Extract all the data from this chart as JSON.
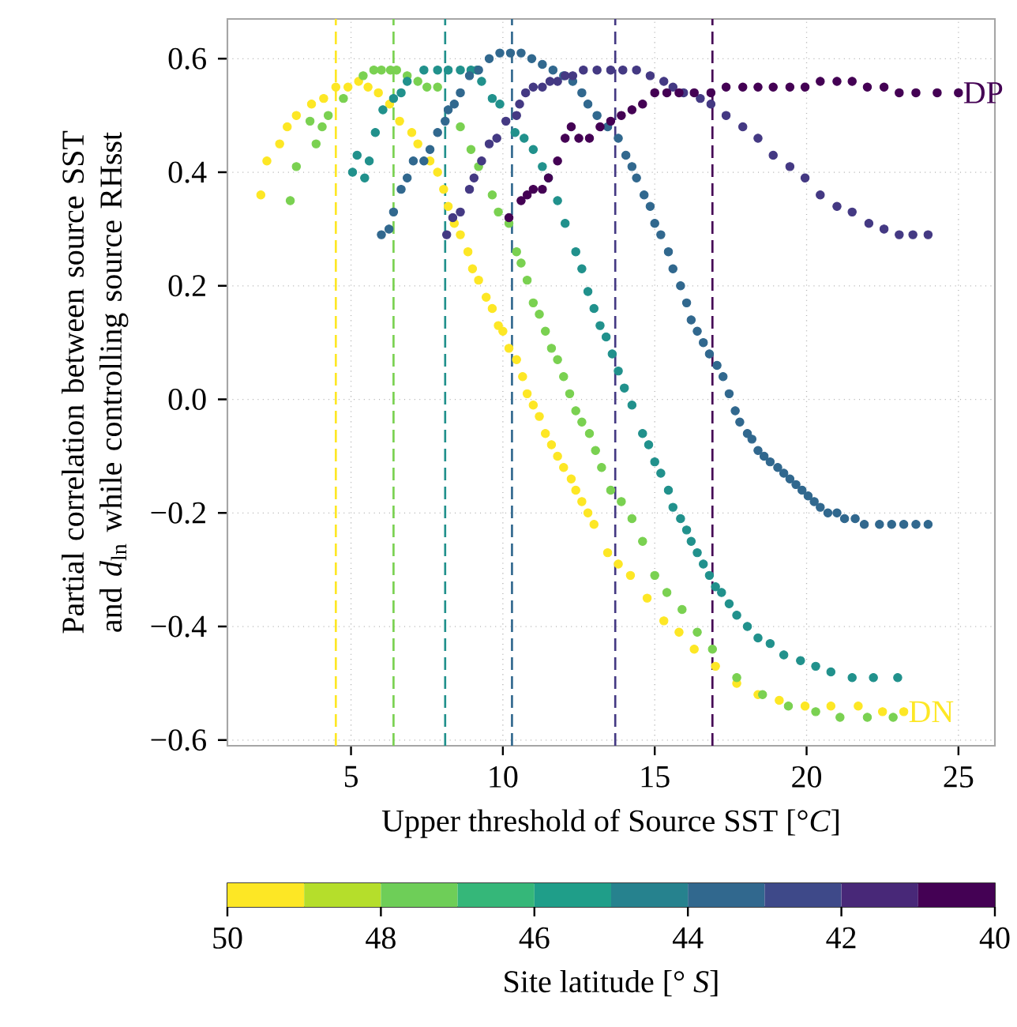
{
  "chart_data": {
    "type": "scatter",
    "xlabel": "Upper threshold of Source SST [°*C*]",
    "ylabel": "Partial correlation between source SST and *d*$_{ln}$ while controlling source RHsst",
    "clabel": "Site latitude [° *S*]",
    "clim": [
      50,
      40
    ],
    "cticks": [
      50,
      48,
      46,
      44,
      42,
      40
    ],
    "xlim": [
      0.93,
      26.2
    ],
    "ylim": [
      -0.61,
      0.67
    ],
    "xticks": [
      5,
      10,
      15,
      20,
      25
    ],
    "yticks": [
      {
        "value": -0.6,
        "label": "−0.6"
      },
      {
        "value": -0.4,
        "label": "−0.4"
      },
      {
        "value": -0.2,
        "label": "−0.2"
      },
      {
        "value": 0,
        "label": "0.0"
      },
      {
        "value": 0.2,
        "label": "0.2"
      },
      {
        "value": 0.4,
        "label": "0.4"
      },
      {
        "value": 0.6,
        "label": "0.6"
      }
    ],
    "grid": true,
    "marker": "circle",
    "series": [
      {
        "name": "DN",
        "color": "#fde725",
        "x": [
          2.03,
          2.23,
          2.65,
          2.9,
          3.2,
          3.7,
          4.1,
          4.5,
          4.9,
          5.25,
          5.56,
          5.9,
          6.27,
          6.6,
          7.0,
          7.2,
          7.6,
          7.85,
          8.05,
          8.2,
          8.4,
          8.6,
          8.85,
          9.0,
          9.2,
          9.45,
          9.65,
          9.85,
          10.0,
          10.2,
          10.45,
          10.65,
          10.8,
          11.0,
          11.2,
          11.4,
          11.6,
          11.8,
          12.0,
          12.25,
          12.4,
          12.6,
          12.8,
          13.0,
          13.45,
          13.8,
          14.2,
          14.75,
          15.3,
          15.8,
          16.3,
          17.0,
          17.7,
          18.4,
          19.1,
          19.95,
          20.8,
          21.7,
          22.5,
          23.2
        ],
        "values": [
          0.36,
          0.42,
          0.45,
          0.48,
          0.5,
          0.52,
          0.53,
          0.55,
          0.55,
          0.56,
          0.55,
          0.54,
          0.52,
          0.49,
          0.47,
          0.45,
          0.42,
          0.4,
          0.37,
          0.34,
          0.31,
          0.29,
          0.26,
          0.23,
          0.21,
          0.18,
          0.16,
          0.13,
          0.12,
          0.09,
          0.07,
          0.04,
          0.01,
          -0.01,
          -0.03,
          -0.06,
          -0.08,
          -0.1,
          -0.12,
          -0.14,
          -0.16,
          -0.18,
          -0.2,
          -0.22,
          -0.27,
          -0.29,
          -0.31,
          -0.35,
          -0.39,
          -0.41,
          -0.44,
          -0.47,
          -0.5,
          -0.52,
          -0.53,
          -0.54,
          -0.54,
          -0.54,
          -0.55,
          -0.55
        ]
      },
      {
        "color": "#7ad151",
        "x": [
          3.0,
          3.2,
          3.65,
          3.85,
          4.05,
          4.25,
          4.75,
          5.4,
          5.75,
          6.0,
          6.3,
          6.5,
          6.85,
          7.2,
          7.5,
          7.85,
          8.2,
          8.6,
          8.95,
          9.2,
          9.65,
          9.85,
          10.2,
          10.45,
          10.6,
          10.8,
          11.0,
          11.2,
          11.4,
          11.6,
          11.8,
          12.0,
          12.2,
          12.4,
          12.6,
          12.85,
          13.05,
          13.25,
          13.55,
          13.9,
          14.25,
          14.6,
          15.0,
          15.4,
          15.9,
          16.4,
          16.9,
          17.7,
          18.55,
          19.4,
          20.3,
          21.1,
          22.0,
          22.85
        ],
        "values": [
          0.35,
          0.41,
          0.49,
          0.45,
          0.48,
          0.5,
          0.53,
          0.57,
          0.58,
          0.58,
          0.58,
          0.58,
          0.57,
          0.56,
          0.55,
          0.55,
          null,
          0.48,
          0.44,
          0.41,
          0.36,
          0.33,
          0.31,
          0.26,
          0.24,
          0.21,
          0.17,
          0.15,
          0.12,
          0.09,
          0.07,
          0.04,
          0.01,
          -0.02,
          -0.04,
          -0.06,
          -0.09,
          -0.12,
          -0.16,
          -0.18,
          -0.21,
          -0.25,
          -0.31,
          -0.34,
          -0.37,
          -0.41,
          -0.44,
          -0.49,
          -0.52,
          -0.54,
          -0.55,
          -0.56,
          -0.56,
          -0.56
        ]
      },
      {
        "color": "#21918c",
        "x": [
          5.05,
          5.2,
          5.45,
          5.6,
          5.8,
          6.05,
          6.4,
          6.65,
          6.85,
          7.4,
          7.85,
          8.2,
          8.6,
          8.95,
          9.15,
          9.3,
          9.65,
          9.9,
          10.4,
          10.7,
          11.0,
          11.3,
          11.5,
          11.8,
          12.05,
          12.4,
          12.6,
          12.8,
          13.0,
          13.2,
          13.4,
          13.6,
          13.8,
          14.0,
          14.25,
          14.6,
          14.8,
          15.0,
          15.2,
          15.45,
          15.6,
          15.85,
          16.05,
          16.2,
          16.4,
          16.6,
          16.8,
          17.0,
          17.2,
          17.45,
          17.7,
          18.05,
          18.4,
          18.8,
          19.25,
          19.8,
          20.3,
          20.8,
          21.5,
          22.2,
          23.0
        ],
        "values": [
          0.4,
          0.43,
          0.39,
          0.42,
          0.47,
          0.51,
          0.53,
          0.54,
          0.56,
          0.58,
          0.58,
          0.58,
          0.58,
          0.58,
          0.58,
          0.56,
          0.53,
          0.52,
          0.47,
          0.46,
          0.44,
          0.41,
          0.39,
          0.35,
          0.31,
          0.26,
          0.23,
          0.19,
          0.16,
          0.13,
          0.11,
          0.08,
          0.05,
          0.02,
          -0.01,
          -0.06,
          -0.08,
          -0.11,
          -0.13,
          -0.16,
          -0.19,
          -0.21,
          -0.23,
          -0.25,
          -0.27,
          -0.29,
          -0.31,
          -0.33,
          -0.34,
          -0.36,
          -0.38,
          -0.4,
          -0.42,
          -0.43,
          -0.45,
          -0.46,
          -0.47,
          -0.48,
          -0.49,
          -0.49,
          -0.49
        ]
      },
      {
        "color": "#31688e",
        "x": [
          6.0,
          6.25,
          6.4,
          6.65,
          6.85,
          7.05,
          7.4,
          7.6,
          7.85,
          8.1,
          8.2,
          8.4,
          8.6,
          8.9,
          9.2,
          9.55,
          9.9,
          10.25,
          10.6,
          10.95,
          11.3,
          11.65,
          12.0,
          12.3,
          12.6,
          12.8,
          13.1,
          13.45,
          13.8,
          14.05,
          14.25,
          14.4,
          14.65,
          14.85,
          15.0,
          15.2,
          15.45,
          15.6,
          15.85,
          16.05,
          16.2,
          16.4,
          16.6,
          16.8,
          17.05,
          17.25,
          17.45,
          17.65,
          17.8,
          18.05,
          18.2,
          18.4,
          18.6,
          18.8,
          19.05,
          19.25,
          19.45,
          19.65,
          19.85,
          20.05,
          20.25,
          20.45,
          20.7,
          21.0,
          21.25,
          21.6,
          21.9,
          22.4,
          22.8,
          23.2,
          23.6,
          24.0
        ],
        "values": [
          0.29,
          0.3,
          0.33,
          0.37,
          0.39,
          0.42,
          0.42,
          0.44,
          0.47,
          0.49,
          0.51,
          0.52,
          0.54,
          0.57,
          0.58,
          0.6,
          0.61,
          0.61,
          0.61,
          0.6,
          0.59,
          0.58,
          0.57,
          0.56,
          0.54,
          0.52,
          0.5,
          0.48,
          0.46,
          0.43,
          0.41,
          0.39,
          0.36,
          0.34,
          0.31,
          0.29,
          0.26,
          0.23,
          0.2,
          0.17,
          0.14,
          0.12,
          0.1,
          0.08,
          0.06,
          0.04,
          0.01,
          -0.02,
          -0.04,
          -0.06,
          -0.07,
          -0.09,
          -0.1,
          -0.11,
          -0.12,
          -0.13,
          -0.14,
          -0.15,
          -0.16,
          -0.17,
          -0.18,
          -0.19,
          -0.2,
          -0.2,
          -0.21,
          -0.21,
          -0.22,
          -0.22,
          -0.22,
          -0.22,
          -0.22,
          -0.22
        ]
      },
      {
        "color": "#443983",
        "x": [
          8.15,
          8.35,
          8.6,
          8.9,
          9.05,
          9.3,
          9.55,
          9.8,
          10.1,
          10.45,
          10.55,
          10.75,
          11.0,
          11.3,
          11.55,
          11.8,
          12.05,
          12.3,
          12.65,
          13.1,
          13.55,
          13.95,
          14.4,
          14.85,
          15.3,
          15.6,
          15.95,
          16.5,
          16.85,
          17.35,
          17.9,
          18.4,
          18.9,
          19.45,
          19.95,
          20.45,
          21.0,
          21.5,
          22.05,
          22.55,
          23.05,
          23.5,
          24.0
        ],
        "values": [
          0.29,
          0.32,
          0.33,
          0.37,
          0.39,
          0.42,
          0.45,
          0.46,
          0.49,
          0.5,
          0.52,
          0.54,
          0.55,
          0.55,
          0.56,
          0.56,
          0.57,
          0.57,
          0.58,
          0.58,
          0.58,
          0.58,
          0.58,
          0.57,
          0.56,
          0.55,
          0.54,
          0.53,
          0.52,
          0.5,
          0.48,
          0.46,
          0.43,
          0.41,
          0.39,
          0.36,
          0.34,
          0.33,
          0.31,
          0.3,
          0.29,
          0.29,
          0.29
        ]
      },
      {
        "name": "DP",
        "color": "#440154",
        "x": [
          10.2,
          10.6,
          10.8,
          11.0,
          11.3,
          11.5,
          11.8,
          12.05,
          12.25,
          12.5,
          12.85,
          13.2,
          13.55,
          13.9,
          14.25,
          14.6,
          15.0,
          15.4,
          15.8,
          16.3,
          16.85,
          17.35,
          17.9,
          18.4,
          18.9,
          19.45,
          19.95,
          20.45,
          21.0,
          21.5,
          22.0,
          22.55,
          23.05,
          23.6,
          24.3,
          25.0
        ],
        "values": [
          0.32,
          0.35,
          0.36,
          0.37,
          0.37,
          0.39,
          0.42,
          0.46,
          0.48,
          0.46,
          0.46,
          0.48,
          0.49,
          0.5,
          0.51,
          0.52,
          0.54,
          0.54,
          0.54,
          0.54,
          0.54,
          0.55,
          0.55,
          0.55,
          0.55,
          0.55,
          0.55,
          0.56,
          0.56,
          0.56,
          0.55,
          0.55,
          0.54,
          0.54,
          0.54,
          0.54
        ]
      }
    ],
    "ref_lines": [
      {
        "axis": "x",
        "value": 4.5,
        "color": "#fde725",
        "line_style": "dashed"
      },
      {
        "axis": "x",
        "value": 6.4,
        "color": "#7ad151",
        "line_style": "dashed"
      },
      {
        "axis": "x",
        "value": 8.1,
        "color": "#21918c",
        "line_style": "dashed"
      },
      {
        "axis": "x",
        "value": 10.3,
        "color": "#31688e",
        "line_style": "dashed"
      },
      {
        "axis": "x",
        "value": 13.7,
        "color": "#443983",
        "line_style": "dashed"
      },
      {
        "axis": "x",
        "value": 16.9,
        "color": "#440154",
        "line_style": "dashed"
      }
    ]
  }
}
